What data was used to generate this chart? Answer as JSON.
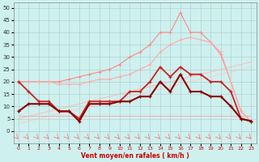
{
  "x": [
    0,
    1,
    2,
    3,
    4,
    5,
    6,
    7,
    8,
    9,
    10,
    11,
    12,
    13,
    14,
    15,
    16,
    17,
    18,
    19,
    20,
    21,
    22,
    23
  ],
  "line_top_pink": [
    20,
    20,
    20,
    20,
    20,
    21,
    22,
    23,
    24,
    25,
    27,
    30,
    32,
    35,
    40,
    40,
    48,
    40,
    40,
    36,
    31,
    20,
    8,
    4
  ],
  "line_mid_pink": [
    20,
    20,
    20,
    20,
    19,
    19,
    19,
    20,
    21,
    21,
    22,
    23,
    25,
    27,
    32,
    35,
    37,
    38,
    37,
    36,
    32,
    20,
    8,
    4
  ],
  "line_diag1": [
    5,
    6,
    7,
    8,
    9,
    10,
    11,
    12,
    13,
    14,
    15,
    16,
    17,
    18,
    19,
    20,
    21,
    22,
    23,
    24,
    25,
    26,
    27,
    28
  ],
  "line_diag2": [
    3,
    4,
    5,
    6,
    7,
    8,
    9,
    10,
    11,
    12,
    13,
    14,
    15,
    16,
    17,
    18,
    19,
    20,
    21,
    22,
    23,
    24,
    25,
    26
  ],
  "line_flat": [
    6,
    6,
    6,
    6,
    6,
    6,
    6,
    6,
    6,
    6,
    6,
    6,
    6,
    6,
    6,
    6,
    6,
    6,
    6,
    6,
    6,
    6,
    6,
    6
  ],
  "line_med": [
    20,
    16,
    12,
    12,
    8,
    8,
    5,
    12,
    12,
    12,
    12,
    16,
    16,
    20,
    26,
    22,
    26,
    23,
    23,
    20,
    20,
    16,
    5,
    4
  ],
  "line_dark": [
    8,
    11,
    11,
    11,
    8,
    8,
    4,
    11,
    11,
    11,
    12,
    12,
    14,
    14,
    20,
    16,
    23,
    16,
    16,
    14,
    14,
    10,
    5,
    4
  ],
  "ylim": [
    -5,
    52
  ],
  "xlim": [
    -0.5,
    23.5
  ],
  "yticks": [
    0,
    5,
    10,
    15,
    20,
    25,
    30,
    35,
    40,
    45,
    50
  ],
  "xticks": [
    0,
    1,
    2,
    3,
    4,
    5,
    6,
    7,
    8,
    9,
    10,
    11,
    12,
    13,
    14,
    15,
    16,
    17,
    18,
    19,
    20,
    21,
    22,
    23
  ],
  "xlabel": "Vent moyen/en rafales ( km/h )",
  "bg_color": "#cef0ee",
  "grid_color": "#aacccc"
}
